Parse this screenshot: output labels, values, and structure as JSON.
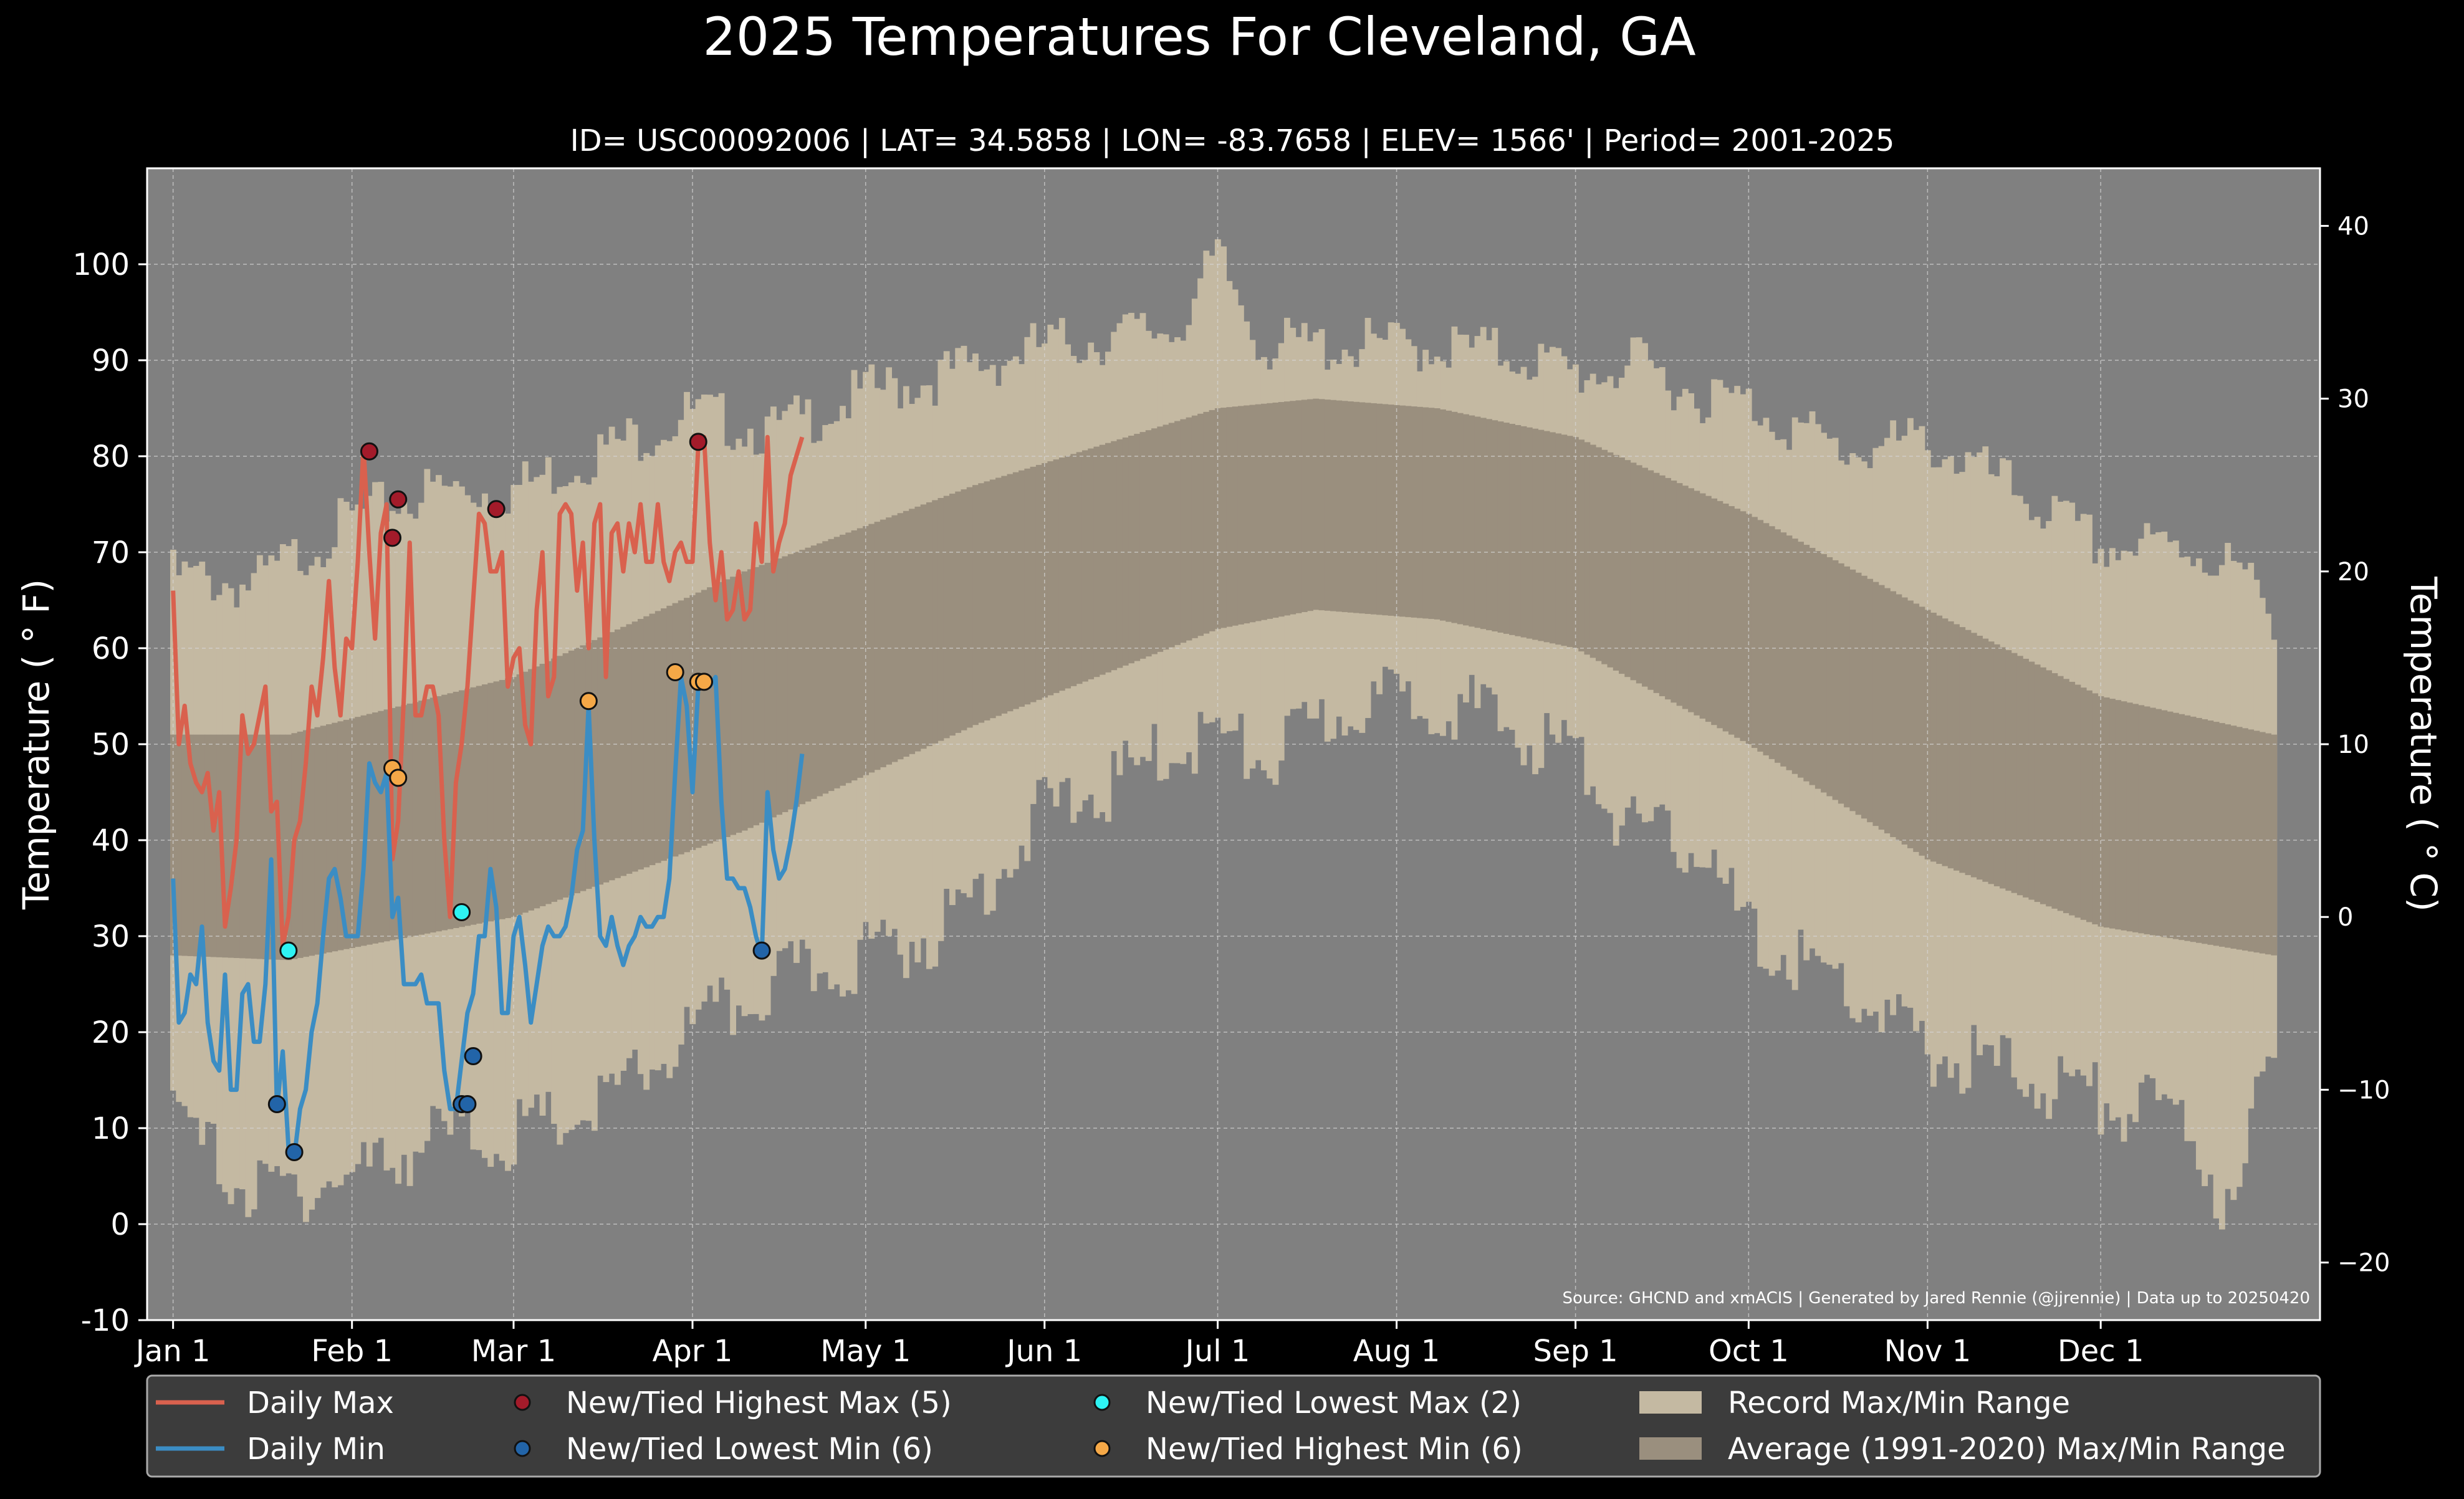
{
  "chart_data": {
    "type": "line",
    "title": "2025 Temperatures For Cleveland, GA",
    "subtitle": "ID= USC00092006 | LAT= 34.5858 | LON= -83.7658 | ELEV= 1566' | Period= 2001-2025",
    "ylabel": "Temperature ($^\\circ$F)",
    "ylabel_display": "Temperature ( ° F)",
    "y2label_display": "Temperature ( ° C)",
    "source": "Source: GHCND and xmACIS | Generated by Jared Rennie (@jjrennie) | Data up to 20250420",
    "ylim": [
      -10,
      110
    ],
    "y_ticks": [
      -10,
      0,
      10,
      20,
      30,
      40,
      50,
      60,
      70,
      80,
      90,
      100
    ],
    "y2_ticks": [
      -20,
      -10,
      0,
      10,
      20,
      30,
      40
    ],
    "x_tick_labels": [
      "Jan 1",
      "Feb 1",
      "Mar 1",
      "Apr 1",
      "May 1",
      "Jun 1",
      "Jul 1",
      "Aug 1",
      "Sep 1",
      "Oct 1",
      "Nov 1",
      "Dec 1"
    ],
    "x_tick_days": [
      1,
      32,
      60,
      91,
      121,
      152,
      182,
      213,
      244,
      274,
      305,
      335
    ],
    "grid": true,
    "legend_position": "bottom",
    "legend": [
      {
        "label": "Daily Max",
        "kind": "line",
        "color": "#d9614e"
      },
      {
        "label": "Daily Min",
        "kind": "line",
        "color": "#3b8dc4"
      },
      {
        "label": "New/Tied Highest Max (5)",
        "kind": "marker",
        "color": "#a31b2a"
      },
      {
        "label": "New/Tied Lowest Min (6)",
        "kind": "marker",
        "color": "#2264a8"
      },
      {
        "label": "New/Tied Lowest Max (2)",
        "kind": "marker",
        "color": "#2ef3f3"
      },
      {
        "label": "New/Tied Highest Min (6)",
        "kind": "marker",
        "color": "#f5a847"
      },
      {
        "label": "Record Max/Min Range",
        "kind": "patch",
        "color": "#c4b9a2"
      },
      {
        "label": "Average (1991-2020) Max/Min Range",
        "kind": "patch",
        "color": "#9a8f7e"
      }
    ],
    "colors": {
      "figure_bg": "#000000",
      "plot_bg": "#808080",
      "record_range": "#c4b9a2",
      "normal_range": "#9a8f7e",
      "daily_max": "#d9614e",
      "daily_min": "#3b8dc4",
      "record_high_max": "#a31b2a",
      "record_low_min": "#2264a8",
      "record_low_max": "#2ef3f3",
      "record_high_min": "#f5a847",
      "legend_bg": "#3c3c3c"
    },
    "normals": {
      "day_of_year": [
        1,
        21,
        60,
        100,
        140,
        182,
        199,
        220,
        244,
        274,
        305,
        335,
        365
      ],
      "max": [
        51,
        51,
        57,
        68,
        77,
        85,
        86,
        85,
        82,
        74,
        64,
        55,
        51
      ],
      "min": [
        28,
        27.5,
        32,
        41,
        52,
        62,
        64,
        63,
        60,
        50,
        38,
        31,
        28
      ]
    },
    "record_range": {
      "day_of_year": [
        1,
        15,
        32,
        46,
        60,
        75,
        91,
        105,
        121,
        135,
        152,
        165,
        175,
        182,
        190,
        205,
        220,
        235,
        244,
        255,
        265,
        274,
        290,
        305,
        320,
        335,
        350,
        358,
        365
      ],
      "max": [
        69,
        68,
        75,
        78,
        78,
        82,
        86,
        84,
        88,
        90,
        93,
        94,
        95,
        102,
        93,
        93,
        93,
        92,
        90,
        91,
        88,
        87,
        82,
        83,
        78,
        72,
        72,
        70,
        65
      ],
      "min": [
        13,
        5,
        7,
        11,
        11,
        14,
        22,
        27,
        30,
        33,
        45,
        48,
        52,
        53,
        50,
        56,
        57,
        53,
        51,
        42,
        42,
        32,
        27,
        20,
        18,
        15,
        13,
        2,
        22
      ]
    },
    "series": [
      {
        "name": "Daily Max",
        "day_of_year": [
          1,
          2,
          3,
          4,
          5,
          6,
          7,
          8,
          9,
          10,
          11,
          12,
          13,
          14,
          15,
          16,
          17,
          18,
          19,
          20,
          21,
          22,
          23,
          24,
          25,
          26,
          27,
          28,
          29,
          30,
          31,
          32,
          33,
          34,
          35,
          36,
          37,
          38,
          39,
          40,
          41,
          42,
          43,
          44,
          45,
          46,
          47,
          48,
          49,
          50,
          51,
          52,
          53,
          54,
          55,
          56,
          57,
          58,
          59,
          60,
          61,
          62,
          63,
          64,
          65,
          66,
          67,
          68,
          69,
          70,
          71,
          72,
          73,
          74,
          75,
          76,
          77,
          78,
          79,
          80,
          81,
          82,
          83,
          84,
          85,
          86,
          87,
          88,
          89,
          90,
          91,
          92,
          93,
          94,
          95,
          96,
          97,
          98,
          99,
          100,
          101,
          102,
          103,
          104,
          105,
          106,
          107,
          108,
          109,
          110
        ],
        "values": [
          66,
          50,
          54,
          48,
          46,
          45,
          47,
          41,
          45,
          31,
          35,
          40,
          53,
          49,
          50,
          53,
          56,
          43,
          44,
          29,
          32,
          40,
          42,
          48,
          56,
          53,
          59,
          67,
          58,
          53,
          61,
          60,
          69,
          81,
          70,
          61,
          72,
          75,
          38,
          42,
          55,
          71,
          53,
          53,
          56,
          56,
          53,
          40,
          32,
          46,
          50,
          56,
          65,
          74,
          73,
          68,
          68,
          70,
          56,
          59,
          60,
          52,
          50,
          64,
          70,
          55,
          57,
          74,
          75,
          74,
          66,
          71,
          60,
          73,
          75,
          57,
          72,
          73,
          68,
          73,
          70,
          75,
          69,
          69,
          75,
          69,
          67,
          70,
          71,
          69,
          69,
          81,
          82,
          71,
          65,
          70,
          63,
          64,
          68,
          63,
          64,
          73,
          69,
          82,
          68,
          71,
          73,
          78,
          80,
          82
        ]
      },
      {
        "name": "Daily Min",
        "day_of_year": [
          1,
          2,
          3,
          4,
          5,
          6,
          7,
          8,
          9,
          10,
          11,
          12,
          13,
          14,
          15,
          16,
          17,
          18,
          19,
          20,
          21,
          22,
          23,
          24,
          25,
          26,
          27,
          28,
          29,
          30,
          31,
          32,
          33,
          34,
          35,
          36,
          37,
          38,
          39,
          40,
          41,
          42,
          43,
          44,
          45,
          46,
          47,
          48,
          49,
          50,
          51,
          52,
          53,
          54,
          55,
          56,
          57,
          58,
          59,
          60,
          61,
          62,
          63,
          64,
          65,
          66,
          67,
          68,
          69,
          70,
          71,
          72,
          73,
          74,
          75,
          76,
          77,
          78,
          79,
          80,
          81,
          82,
          83,
          84,
          85,
          86,
          87,
          88,
          89,
          90,
          91,
          92,
          93,
          94,
          95,
          96,
          97,
          98,
          99,
          100,
          101,
          102,
          103,
          104,
          105,
          106,
          107,
          108,
          109,
          110
        ],
        "values": [
          36,
          21,
          22,
          26,
          25,
          31,
          21,
          17,
          16,
          26,
          14,
          14,
          24,
          25,
          19,
          19,
          25,
          38,
          12,
          18,
          8,
          7,
          12,
          14,
          20,
          23,
          30,
          36,
          37,
          34,
          30,
          30,
          30,
          37,
          48,
          46,
          45,
          47,
          32,
          34,
          25,
          25,
          25,
          26,
          23,
          23,
          23,
          16,
          12,
          12,
          17,
          22,
          24,
          30,
          30,
          37,
          33,
          22,
          22,
          30,
          32,
          27,
          21,
          25,
          29,
          31,
          30,
          30,
          31,
          34,
          39,
          41,
          54,
          40,
          30,
          29,
          32,
          29,
          27,
          29,
          30,
          32,
          31,
          31,
          32,
          32,
          36,
          47,
          57,
          54,
          45,
          56,
          57,
          56,
          57,
          44,
          36,
          36,
          35,
          35,
          33,
          30,
          28,
          45,
          39,
          36,
          37,
          40,
          44,
          49
        ]
      }
    ],
    "markers": {
      "record_high_max": {
        "day_of_year": [
          35,
          39,
          40,
          57,
          92
        ],
        "values": [
          80.5,
          71.5,
          75.5,
          74.5,
          81.5
        ]
      },
      "record_low_min": {
        "day_of_year": [
          19,
          22,
          51,
          52,
          53,
          103
        ],
        "values": [
          12.5,
          7.5,
          12.5,
          12.5,
          17.5,
          28.5
        ]
      },
      "record_low_max": {
        "day_of_year": [
          21,
          51
        ],
        "values": [
          28.5,
          32.5
        ]
      },
      "record_high_min": {
        "day_of_year": [
          39,
          40,
          73,
          88,
          92,
          93
        ],
        "values": [
          47.5,
          46.5,
          54.5,
          57.5,
          56.5,
          56.5
        ]
      }
    }
  }
}
